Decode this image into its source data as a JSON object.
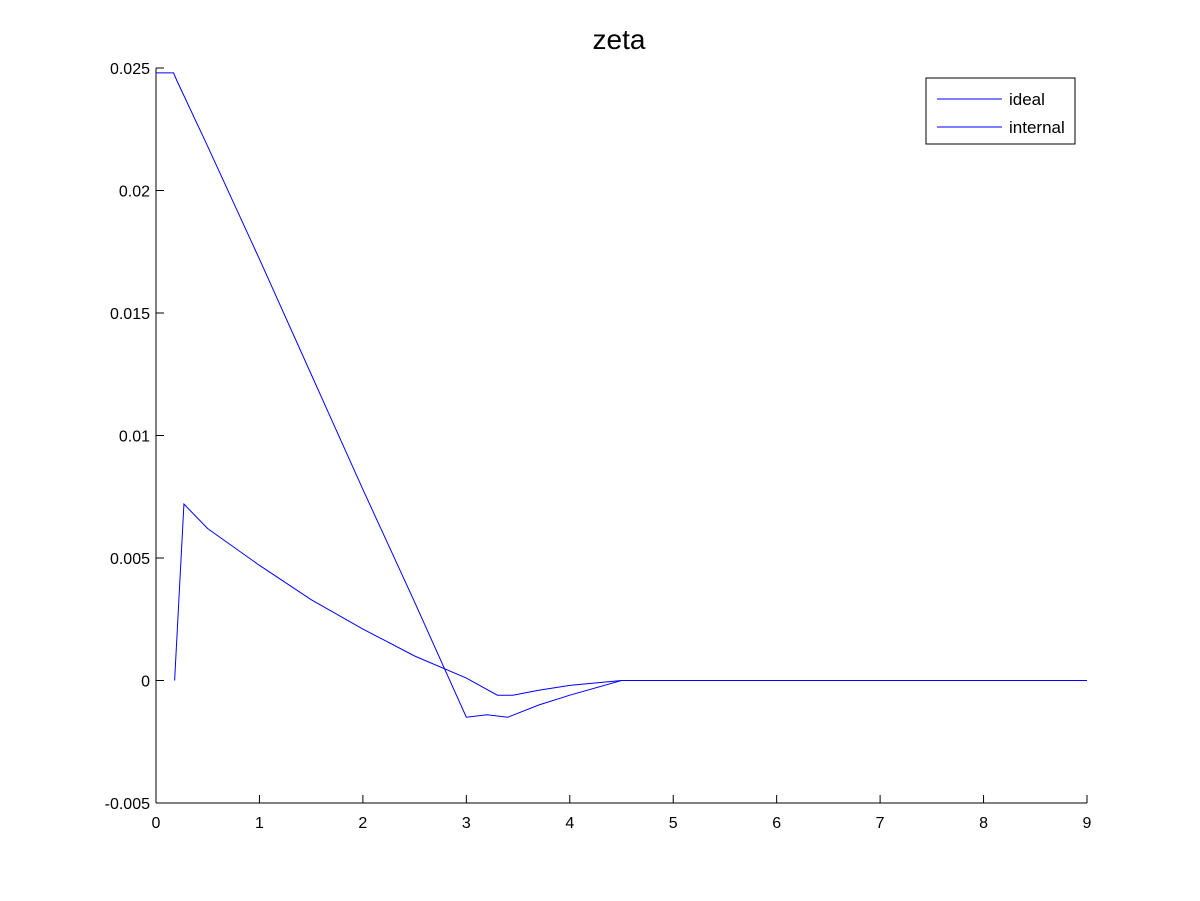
{
  "chart_data": {
    "type": "line",
    "title": "zeta",
    "xlabel": "",
    "ylabel": "",
    "xlim": [
      0,
      9
    ],
    "ylim": [
      -0.005,
      0.025
    ],
    "x_ticks": [
      "0",
      "1",
      "2",
      "3",
      "4",
      "5",
      "6",
      "7",
      "8",
      "9"
    ],
    "y_ticks": [
      "-0.005",
      "0",
      "0.005",
      "0.01",
      "0.015",
      "0.02",
      "0.025"
    ],
    "grid": false,
    "legend_position": "top-right",
    "series": [
      {
        "name": "ideal",
        "color": "#0000ff",
        "x": [
          0,
          0.17,
          0.2,
          0.5,
          1.0,
          1.5,
          2.0,
          2.5,
          3.0,
          3.2,
          3.4,
          3.7,
          4.0,
          4.5,
          9.0
        ],
        "y": [
          0.0248,
          0.0248,
          0.0245,
          0.0218,
          0.0172,
          0.0125,
          0.0078,
          0.0032,
          -0.0015,
          -0.0014,
          -0.0015,
          -0.001,
          -0.0006,
          0.0,
          0.0
        ]
      },
      {
        "name": "internal",
        "color": "#0000ff",
        "x": [
          0.18,
          0.27,
          0.5,
          1.0,
          1.5,
          2.0,
          2.5,
          3.0,
          3.3,
          3.45,
          3.7,
          4.0,
          4.5,
          9.0
        ],
        "y": [
          0.0,
          0.0072,
          0.0062,
          0.0047,
          0.0033,
          0.0021,
          0.001,
          0.0001,
          -0.0006,
          -0.0006,
          -0.0004,
          -0.0002,
          0.0,
          0.0
        ]
      }
    ]
  }
}
